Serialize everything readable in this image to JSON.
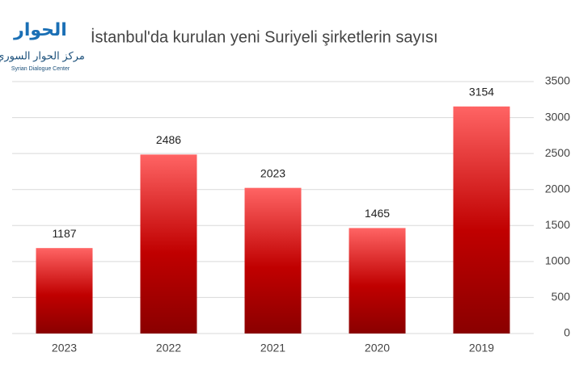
{
  "logo": {
    "mark": "الحوار",
    "arabic": "مركز الحوار السوري",
    "english": "Syrian Dialogue Center"
  },
  "chart_data": {
    "type": "bar",
    "title": "İstanbul'da kurulan yeni Suriyeli şirketlerin sayısı",
    "categories": [
      "2023",
      "2022",
      "2021",
      "2020",
      "2019"
    ],
    "values": [
      1187,
      2486,
      2023,
      1465,
      3154
    ],
    "color": "#c00000",
    "ylim": [
      0,
      3500
    ],
    "yticks": [
      0,
      500,
      1000,
      1500,
      2000,
      2500,
      3000,
      3500
    ],
    "grid": true,
    "y_axis_side": "right"
  }
}
